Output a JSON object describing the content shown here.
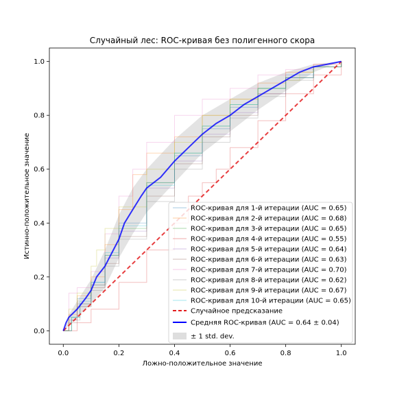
{
  "chart_data": {
    "type": "line",
    "title": "Случайный лес: ROC-кривая без полигенного скора",
    "xlabel": "Ложно-положительное значение",
    "ylabel": "Истинно-положительное значение",
    "xlim": [
      -0.05,
      1.05
    ],
    "ylim": [
      -0.05,
      1.05
    ],
    "xticks": [
      0.0,
      0.2,
      0.4,
      0.6,
      0.8,
      1.0
    ],
    "yticks": [
      0.0,
      0.2,
      0.4,
      0.6,
      0.8,
      1.0
    ],
    "xtick_labels": [
      "0.0",
      "0.2",
      "0.4",
      "0.6",
      "0.8",
      "1.0"
    ],
    "ytick_labels": [
      "0.0",
      "0.2",
      "0.4",
      "0.6",
      "0.8",
      "1.0"
    ],
    "grid": false,
    "legend_position": "lower-right",
    "iterations": [
      {
        "name": "ROC-кривая для 1-й итерации (AUC = 0.65)",
        "color": "#1f77b4",
        "x": [
          0,
          0.02,
          0.05,
          0.1,
          0.15,
          0.2,
          0.3,
          0.4,
          0.5,
          0.6,
          0.7,
          0.8,
          0.9,
          1.0
        ],
        "y": [
          0,
          0.05,
          0.12,
          0.18,
          0.28,
          0.4,
          0.55,
          0.65,
          0.75,
          0.83,
          0.9,
          0.95,
          0.98,
          1.0
        ]
      },
      {
        "name": "ROC-кривая для 2-й итерации (AUC = 0.68)",
        "color": "#ff7f0e",
        "x": [
          0,
          0.02,
          0.05,
          0.1,
          0.15,
          0.2,
          0.25,
          0.3,
          0.4,
          0.5,
          0.6,
          0.7,
          0.8,
          0.9,
          1.0
        ],
        "y": [
          0,
          0.06,
          0.13,
          0.2,
          0.32,
          0.45,
          0.58,
          0.66,
          0.72,
          0.8,
          0.86,
          0.92,
          0.96,
          0.99,
          1.0
        ]
      },
      {
        "name": "ROC-кривая для 3-й итерации (AUC = 0.65)",
        "color": "#2ca02c",
        "x": [
          0,
          0.03,
          0.06,
          0.1,
          0.15,
          0.2,
          0.3,
          0.4,
          0.5,
          0.6,
          0.7,
          0.8,
          0.9,
          1.0
        ],
        "y": [
          0,
          0.05,
          0.1,
          0.17,
          0.28,
          0.38,
          0.55,
          0.66,
          0.76,
          0.84,
          0.9,
          0.94,
          0.98,
          1.0
        ]
      },
      {
        "name": "ROC-кривая для 4-й итерации (AUC = 0.55)",
        "color": "#d62728",
        "x": [
          0,
          0.05,
          0.1,
          0.2,
          0.3,
          0.4,
          0.45,
          0.5,
          0.55,
          0.6,
          0.7,
          0.8,
          0.9,
          1.0
        ],
        "y": [
          0,
          0.03,
          0.08,
          0.18,
          0.3,
          0.4,
          0.5,
          0.55,
          0.6,
          0.68,
          0.78,
          0.88,
          0.95,
          1.0
        ]
      },
      {
        "name": "ROC-кривая для 5-й итерации (AUC = 0.64)",
        "color": "#9467bd",
        "x": [
          0,
          0.02,
          0.05,
          0.1,
          0.15,
          0.2,
          0.3,
          0.4,
          0.5,
          0.6,
          0.7,
          0.8,
          0.9,
          1.0
        ],
        "y": [
          0,
          0.04,
          0.1,
          0.17,
          0.27,
          0.37,
          0.53,
          0.63,
          0.73,
          0.81,
          0.88,
          0.94,
          0.98,
          1.0
        ]
      },
      {
        "name": "ROC-кривая для 6-й итерации (AUC = 0.63)",
        "color": "#8c564b",
        "x": [
          0,
          0.02,
          0.05,
          0.1,
          0.15,
          0.2,
          0.3,
          0.4,
          0.5,
          0.6,
          0.7,
          0.8,
          0.9,
          1.0
        ],
        "y": [
          0,
          0.03,
          0.09,
          0.16,
          0.25,
          0.35,
          0.5,
          0.62,
          0.72,
          0.8,
          0.88,
          0.94,
          0.98,
          1.0
        ]
      },
      {
        "name": "ROC-кривая для 7-й итерации (AUC = 0.70)",
        "color": "#e377c2",
        "x": [
          0,
          0.02,
          0.05,
          0.1,
          0.15,
          0.2,
          0.25,
          0.3,
          0.4,
          0.5,
          0.6,
          0.7,
          0.8,
          0.9,
          1.0
        ],
        "y": [
          0,
          0.14,
          0.16,
          0.22,
          0.36,
          0.5,
          0.6,
          0.7,
          0.8,
          0.86,
          0.9,
          0.95,
          0.97,
          0.99,
          1.0
        ]
      },
      {
        "name": "ROC-кривая для 8-й итерации (AUC = 0.62)",
        "color": "#7f7f7f",
        "x": [
          0,
          0.03,
          0.06,
          0.1,
          0.15,
          0.2,
          0.3,
          0.4,
          0.5,
          0.6,
          0.7,
          0.8,
          0.9,
          1.0
        ],
        "y": [
          0,
          0.04,
          0.09,
          0.15,
          0.24,
          0.34,
          0.48,
          0.6,
          0.7,
          0.79,
          0.87,
          0.93,
          0.98,
          1.0
        ]
      },
      {
        "name": "ROC-кривая для 9-й итерации (AUC = 0.67)",
        "color": "#bcbd22",
        "x": [
          0,
          0.02,
          0.05,
          0.1,
          0.12,
          0.15,
          0.2,
          0.3,
          0.4,
          0.5,
          0.6,
          0.7,
          0.8,
          0.85,
          0.9,
          1.0
        ],
        "y": [
          0,
          0.08,
          0.14,
          0.24,
          0.3,
          0.38,
          0.46,
          0.6,
          0.7,
          0.8,
          0.86,
          0.9,
          0.93,
          0.96,
          0.98,
          1.0
        ]
      },
      {
        "name": "ROC-кривая для 10-й итерации (AUC = 0.65)",
        "color": "#17becf",
        "x": [
          0,
          0.03,
          0.06,
          0.1,
          0.15,
          0.2,
          0.3,
          0.4,
          0.5,
          0.6,
          0.7,
          0.8,
          0.9,
          1.0
        ],
        "y": [
          0,
          0.05,
          0.11,
          0.18,
          0.29,
          0.39,
          0.54,
          0.66,
          0.76,
          0.84,
          0.9,
          0.94,
          0.98,
          1.0
        ]
      }
    ],
    "chance": {
      "name": "Случайное предсказание",
      "color": "#e31a1c",
      "x": [
        0,
        1
      ],
      "y": [
        0,
        1
      ]
    },
    "mean": {
      "name": "Средняя ROC-кривая (AUC = 0.64 ± 0.04)",
      "color": "#0000ff",
      "x": [
        0,
        0.01,
        0.02,
        0.05,
        0.08,
        0.1,
        0.12,
        0.15,
        0.18,
        0.2,
        0.22,
        0.25,
        0.28,
        0.3,
        0.35,
        0.4,
        0.45,
        0.5,
        0.55,
        0.6,
        0.65,
        0.7,
        0.75,
        0.8,
        0.85,
        0.9,
        0.95,
        1.0
      ],
      "y": [
        0,
        0.03,
        0.05,
        0.08,
        0.12,
        0.15,
        0.2,
        0.24,
        0.3,
        0.34,
        0.4,
        0.45,
        0.5,
        0.53,
        0.57,
        0.63,
        0.68,
        0.73,
        0.77,
        0.8,
        0.84,
        0.87,
        0.9,
        0.93,
        0.96,
        0.98,
        0.99,
        1.0
      ]
    },
    "std_band": {
      "name": "± 1 std. dev.",
      "color": "#c8c8c8",
      "x": [
        0,
        0.02,
        0.05,
        0.1,
        0.15,
        0.2,
        0.25,
        0.3,
        0.4,
        0.5,
        0.6,
        0.7,
        0.8,
        0.9,
        1.0
      ],
      "lower": [
        0,
        0.02,
        0.05,
        0.1,
        0.16,
        0.27,
        0.36,
        0.44,
        0.55,
        0.66,
        0.74,
        0.82,
        0.89,
        0.96,
        1.0
      ],
      "upper": [
        0,
        0.06,
        0.11,
        0.19,
        0.3,
        0.43,
        0.53,
        0.6,
        0.71,
        0.8,
        0.86,
        0.92,
        0.96,
        0.99,
        1.0
      ]
    }
  }
}
